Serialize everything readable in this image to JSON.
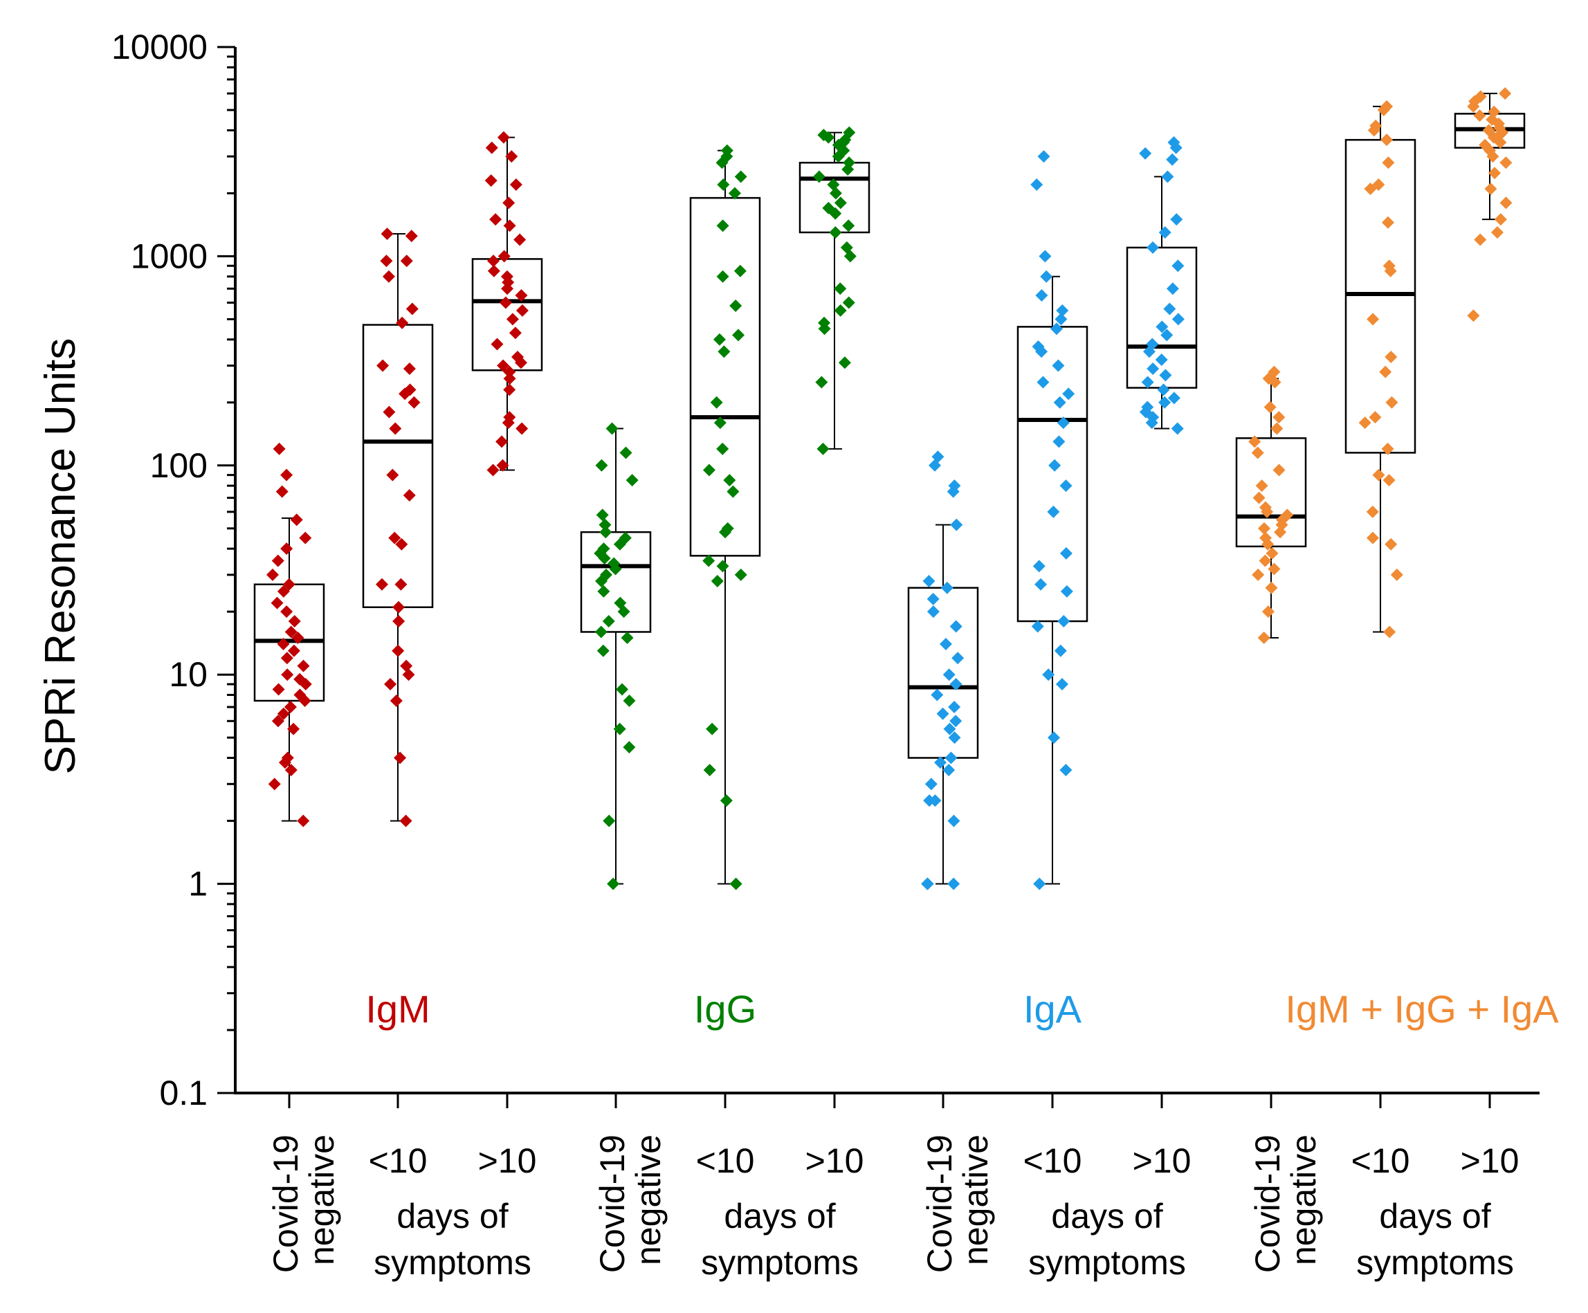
{
  "chart_data": {
    "type": "box-strip",
    "ylabel": "SPRi Resonance Units",
    "yscale": "log",
    "ylim": [
      0.1,
      10000
    ],
    "yticks": [
      {
        "value": 0.1,
        "label": "0.1"
      },
      {
        "value": 1,
        "label": "1"
      },
      {
        "value": 10,
        "label": "10"
      },
      {
        "value": 100,
        "label": "100"
      },
      {
        "value": 1000,
        "label": "1000"
      },
      {
        "value": 10000,
        "label": "10000"
      }
    ],
    "groups": [
      {
        "name": "IgM",
        "color": "#c00000",
        "categories": [
          {
            "label_lines": [
              "Covid-19",
              "negative"
            ],
            "rotated": true,
            "q1": 7.5,
            "median": 14.5,
            "q3": 27,
            "whisker_low": 2,
            "whisker_high": 56,
            "points": [
              2,
              3,
              3.5,
              3.8,
              4,
              5.5,
              6,
              6.5,
              7,
              7.5,
              8,
              8.5,
              9,
              9.5,
              10,
              11,
              12,
              13,
              14,
              15,
              16,
              18,
              20,
              22,
              25,
              27,
              30,
              35,
              40,
              45,
              55,
              75,
              90,
              120
            ]
          },
          {
            "label_lines": [
              "<10"
            ],
            "rotated": false,
            "q1": 21,
            "median": 130,
            "q3": 470,
            "whisker_low": 2,
            "whisker_high": 1280,
            "points": [
              2,
              4,
              7.5,
              9,
              10,
              11,
              13,
              18,
              21,
              27,
              27,
              42,
              45,
              72,
              90,
              150,
              180,
              200,
              220,
              230,
              290,
              300,
              480,
              560,
              800,
              950,
              950,
              1250,
              1280
            ]
          },
          {
            "label_lines": [
              ">10"
            ],
            "rotated": false,
            "q1": 285,
            "median": 610,
            "q3": 970,
            "whisker_low": 95,
            "whisker_high": 3700,
            "points": [
              95,
              100,
              130,
              150,
              160,
              170,
              230,
              260,
              280,
              300,
              310,
              330,
              380,
              430,
              500,
              550,
              600,
              650,
              700,
              750,
              800,
              850,
              950,
              1000,
              1200,
              1400,
              1500,
              1800,
              2200,
              2300,
              3000,
              3300,
              3700
            ]
          }
        ]
      },
      {
        "name": "IgG",
        "color": "#008000",
        "categories": [
          {
            "label_lines": [
              "Covid-19",
              "negative"
            ],
            "rotated": true,
            "q1": 16,
            "median": 33,
            "q3": 48,
            "whisker_low": 1,
            "whisker_high": 150,
            "points": [
              1,
              2,
              4.5,
              5.5,
              7.5,
              8.5,
              13,
              15,
              16,
              18,
              20,
              22,
              25,
              28,
              30,
              32,
              34,
              36,
              38,
              40,
              42,
              45,
              48,
              52,
              58,
              85,
              100,
              115,
              150
            ]
          },
          {
            "label_lines": [
              "<10"
            ],
            "rotated": false,
            "q1": 37,
            "median": 170,
            "q3": 1900,
            "whisker_low": 1,
            "whisker_high": 3200,
            "points": [
              1,
              2.5,
              3.5,
              5.5,
              28,
              30,
              33,
              35,
              48,
              50,
              75,
              85,
              95,
              120,
              160,
              200,
              350,
              400,
              420,
              580,
              800,
              850,
              1400,
              2000,
              2200,
              2400,
              2800,
              3000,
              3200
            ]
          },
          {
            "label_lines": [
              ">10"
            ],
            "rotated": false,
            "q1": 1300,
            "median": 2350,
            "q3": 2800,
            "whisker_low": 120,
            "whisker_high": 3900,
            "points": [
              120,
              250,
              310,
              450,
              480,
              550,
              600,
              700,
              1000,
              1100,
              1300,
              1400,
              1600,
              1700,
              1800,
              2000,
              2200,
              2400,
              2600,
              2800,
              3000,
              3200,
              3400,
              3500,
              3600,
              3700,
              3800,
              3900
            ]
          }
        ]
      },
      {
        "name": "IgA",
        "color": "#1e9be8",
        "categories": [
          {
            "label_lines": [
              "Covid-19",
              "negative"
            ],
            "rotated": true,
            "q1": 4,
            "median": 8.7,
            "q3": 26,
            "whisker_low": 1,
            "whisker_high": 52,
            "points": [
              1,
              1,
              1,
              2,
              2.5,
              2.5,
              3,
              3.5,
              3.8,
              4,
              5,
              5.5,
              6,
              6.5,
              7,
              8,
              9,
              10,
              12,
              14,
              17,
              20,
              23,
              26,
              28,
              52,
              75,
              80,
              100,
              110
            ]
          },
          {
            "label_lines": [
              "<10"
            ],
            "rotated": false,
            "q1": 18,
            "median": 165,
            "q3": 460,
            "whisker_low": 1,
            "whisker_high": 800,
            "points": [
              1,
              3.5,
              5,
              9,
              10,
              13,
              17,
              18,
              25,
              27,
              38,
              33,
              60,
              80,
              100,
              130,
              160,
              200,
              220,
              250,
              300,
              350,
              370,
              450,
              500,
              550,
              650,
              800,
              1000,
              2200,
              3000
            ]
          },
          {
            "label_lines": [
              ">10"
            ],
            "rotated": false,
            "q1": 235,
            "median": 370,
            "q3": 1100,
            "whisker_low": 150,
            "whisker_high": 2400,
            "points": [
              150,
              160,
              170,
              180,
              190,
              200,
              210,
              230,
              250,
              270,
              290,
              320,
              350,
              380,
              420,
              460,
              500,
              560,
              700,
              900,
              1100,
              1300,
              1500,
              2400,
              2900,
              3100,
              3300,
              3500
            ]
          }
        ]
      },
      {
        "name": "IgM + IgG + IgA",
        "color": "#f08a33",
        "categories": [
          {
            "label_lines": [
              "Covid-19",
              "negative"
            ],
            "rotated": true,
            "q1": 41,
            "median": 57,
            "q3": 135,
            "whisker_low": 15,
            "whisker_high": 260,
            "points": [
              15,
              20,
              26,
              30,
              32,
              35,
              38,
              42,
              45,
              48,
              50,
              52,
              55,
              58,
              60,
              63,
              70,
              80,
              95,
              115,
              130,
              150,
              170,
              190,
              250,
              260,
              280
            ]
          },
          {
            "label_lines": [
              "<10"
            ],
            "rotated": false,
            "q1": 115,
            "median": 660,
            "q3": 3600,
            "whisker_low": 16,
            "whisker_high": 5200,
            "points": [
              16,
              30,
              42,
              45,
              60,
              85,
              90,
              120,
              160,
              170,
              200,
              280,
              330,
              500,
              850,
              900,
              1450,
              2100,
              2200,
              2800,
              3600,
              4000,
              4200,
              5000,
              5200
            ]
          },
          {
            "label_lines": [
              ">10"
            ],
            "rotated": false,
            "q1": 3300,
            "median": 4050,
            "q3": 4800,
            "whisker_low": 1500,
            "whisker_high": 6000,
            "points": [
              520,
              1200,
              1300,
              1500,
              1800,
              2100,
              2500,
              2800,
              3000,
              3200,
              3400,
              3500,
              3700,
              3800,
              3900,
              4000,
              4100,
              4300,
              4500,
              4700,
              4900,
              5200,
              5500,
              5800,
              6000
            ]
          }
        ]
      }
    ],
    "shared_label": [
      "days of",
      "symptoms"
    ]
  }
}
